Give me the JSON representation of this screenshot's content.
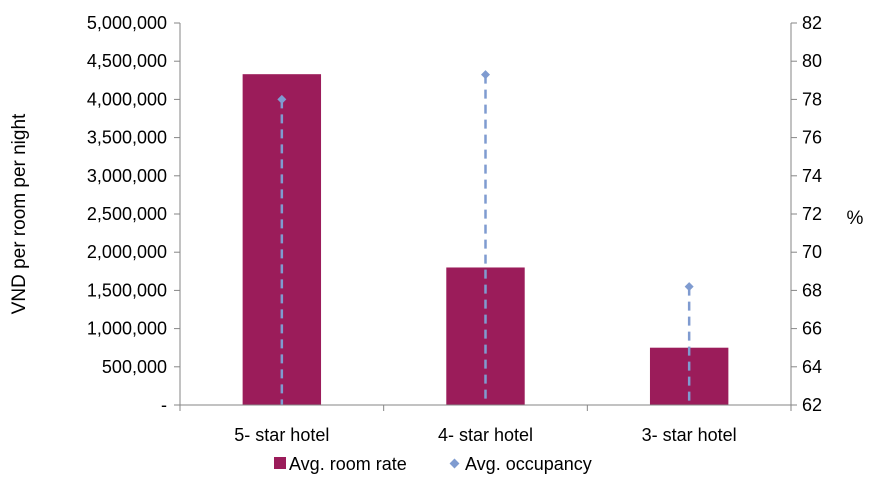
{
  "chart_data": {
    "type": "bar",
    "categories": [
      "5- star hotel",
      "4- star hotel",
      "3- star hotel"
    ],
    "series": [
      {
        "name": "Avg. room rate",
        "type": "bar",
        "axis": "left",
        "color": "#9B1C5A",
        "values": [
          4330000,
          1800000,
          750000
        ]
      },
      {
        "name": "Avg. occupancy",
        "type": "scatter",
        "axis": "right",
        "color": "#7F9BD0",
        "marker": "diamond",
        "drop_lines": "dashed",
        "values": [
          78.0,
          79.3,
          68.2
        ]
      }
    ],
    "y_left": {
      "label": "VND per room per night",
      "ylim": [
        0,
        5000000
      ],
      "ticks": [
        0,
        500000,
        1000000,
        1500000,
        2000000,
        2500000,
        3000000,
        3500000,
        4000000,
        4500000,
        5000000
      ],
      "tick_labels": [
        "-",
        "500,000",
        "1,000,000",
        "1,500,000",
        "2,000,000",
        "2,500,000",
        "3,000,000",
        "3,500,000",
        "4,000,000",
        "4,500,000",
        "5,000,000"
      ]
    },
    "y_right": {
      "label": "%",
      "ylim": [
        62,
        82
      ],
      "ticks": [
        62,
        64,
        66,
        68,
        70,
        72,
        74,
        76,
        78,
        80,
        82
      ],
      "tick_labels": [
        "62",
        "64",
        "66",
        "68",
        "70",
        "72",
        "74",
        "76",
        "78",
        "80",
        "82"
      ]
    },
    "grid": false,
    "legend_position": "bottom"
  }
}
